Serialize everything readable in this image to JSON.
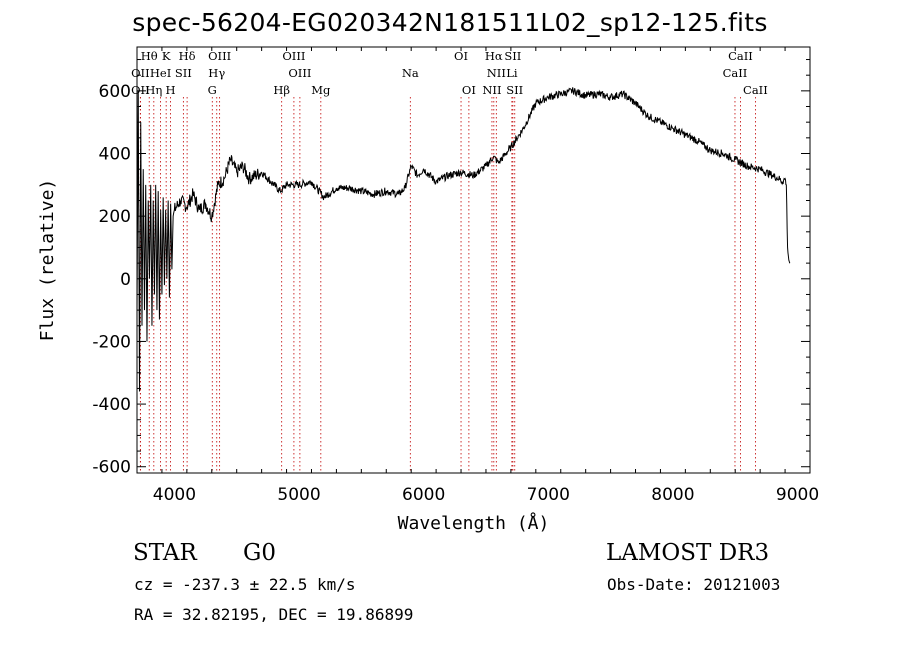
{
  "chart_data": {
    "type": "line",
    "title": "spec-56204-EG020342N181511L02_sp12-125.fits",
    "xlabel": "Wavelength (Å)",
    "ylabel": "Flux (relative)",
    "xlim": [
      3700,
      9100
    ],
    "ylim": [
      -620,
      740
    ],
    "xticks": [
      "4000",
      "5000",
      "6000",
      "7000",
      "8000",
      "9000"
    ],
    "yticks": [
      "-600",
      "-400",
      "-200",
      "0",
      "200",
      "400",
      "600"
    ],
    "grid": false,
    "series": [
      {
        "x": [
          3700,
          3710,
          3720,
          3730,
          3740,
          3750,
          3760,
          3770,
          3780,
          3790,
          3800,
          3810,
          3820,
          3830,
          3840,
          3850,
          3860,
          3870,
          3880,
          3890,
          3900,
          3910,
          3920,
          3930,
          3940,
          3950,
          3960,
          3970,
          3980,
          3990,
          4000,
          4050,
          4100,
          4150,
          4200,
          4250,
          4300,
          4350,
          4400,
          4450,
          4500,
          4550,
          4600,
          4700,
          4800,
          4850,
          4900,
          5000,
          5100,
          5200,
          5300,
          5400,
          5500,
          5600,
          5700,
          5800,
          5850,
          5900,
          5950,
          6000,
          6100,
          6200,
          6300,
          6400,
          6500,
          6560,
          6600,
          6700,
          6800,
          6900,
          7000,
          7100,
          7200,
          7300,
          7400,
          7500,
          7600,
          7700,
          7800,
          7900,
          8000,
          8100,
          8200,
          8300,
          8400,
          8500,
          8600,
          8700,
          8800,
          8850,
          8880,
          8900,
          8910,
          8920,
          8930,
          8940
        ],
        "values": [
          -100,
          600,
          -360,
          500,
          -150,
          350,
          -100,
          300,
          -200,
          250,
          0,
          300,
          -150,
          250,
          -50,
          300,
          -100,
          280,
          -130,
          220,
          -50,
          260,
          -20,
          220,
          0,
          250,
          -60,
          240,
          30,
          200,
          220,
          250,
          230,
          270,
          220,
          240,
          200,
          300,
          320,
          380,
          340,
          360,
          320,
          340,
          300,
          280,
          300,
          300,
          310,
          260,
          290,
          290,
          280,
          270,
          280,
          270,
          290,
          360,
          330,
          350,
          310,
          330,
          340,
          330,
          360,
          390,
          370,
          420,
          480,
          560,
          580,
          590,
          600,
          585,
          590,
          580,
          590,
          560,
          520,
          500,
          480,
          460,
          440,
          410,
          400,
          380,
          360,
          350,
          330,
          320,
          310,
          320,
          300,
          100,
          60,
          50
        ]
      }
    ],
    "lines_top": [
      {
        "label": "Hθ",
        "x": 3798
      },
      {
        "label": "K",
        "x": 3934
      },
      {
        "label": "Hδ",
        "x": 4102
      },
      {
        "label": "OIII",
        "x": 4363
      },
      {
        "label": "OIII",
        "x": 4959
      },
      {
        "label": "OI",
        "x": 6300
      },
      {
        "label": "Hα",
        "x": 6563
      },
      {
        "label": "SII",
        "x": 6716
      },
      {
        "label": "CaII",
        "x": 8542
      }
    ],
    "lines_mid": [
      {
        "label": "OII",
        "x": 3727
      },
      {
        "label": "HeI",
        "x": 3889
      },
      {
        "label": "SII",
        "x": 4072
      },
      {
        "label": "Hγ",
        "x": 4340
      },
      {
        "label": "OIII",
        "x": 5007
      },
      {
        "label": "Na",
        "x": 5893
      },
      {
        "label": "NII",
        "x": 6583
      },
      {
        "label": "Li",
        "x": 6708
      },
      {
        "label": "CaII",
        "x": 8498
      }
    ],
    "lines_bot": [
      {
        "label": "OII",
        "x": 3727
      },
      {
        "label": "Hη",
        "x": 3835
      },
      {
        "label": "H",
        "x": 3969
      },
      {
        "label": "G",
        "x": 4304
      },
      {
        "label": "Hβ",
        "x": 4861
      },
      {
        "label": "Mg",
        "x": 5175
      },
      {
        "label": "OI",
        "x": 6363
      },
      {
        "label": "NII",
        "x": 6548
      },
      {
        "label": "SII",
        "x": 6731
      },
      {
        "label": "CaII",
        "x": 8662
      }
    ]
  },
  "info": {
    "class": "STAR",
    "subclass": "G0",
    "survey": "LAMOST DR3",
    "cz": "cz = -237.3 ± 22.5 km/s",
    "obsdate": "Obs-Date: 20121003",
    "radec": "RA =  32.82195, DEC =  19.86899"
  }
}
